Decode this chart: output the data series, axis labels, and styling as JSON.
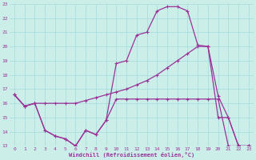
{
  "xlabel": "Windchill (Refroidissement éolien,°C)",
  "bg_color": "#cceee8",
  "grid_color": "#aadddd",
  "line_color": "#993399",
  "xlim": [
    -0.5,
    23.5
  ],
  "ylim": [
    13,
    23
  ],
  "yticks": [
    13,
    14,
    15,
    16,
    17,
    18,
    19,
    20,
    21,
    22,
    23
  ],
  "xticks": [
    0,
    1,
    2,
    3,
    4,
    5,
    6,
    7,
    8,
    9,
    10,
    11,
    12,
    13,
    14,
    15,
    16,
    17,
    18,
    19,
    20,
    21,
    22,
    23
  ],
  "line1_x": [
    0,
    1,
    2,
    3,
    4,
    5,
    6,
    7,
    8,
    9,
    10,
    11,
    12,
    13,
    14,
    15,
    16,
    17,
    18,
    19,
    20,
    21,
    22,
    23
  ],
  "line1_y": [
    16.6,
    15.8,
    16.0,
    14.1,
    13.7,
    13.5,
    13.0,
    14.1,
    13.8,
    14.8,
    16.3,
    16.3,
    16.3,
    16.3,
    16.3,
    16.3,
    16.3,
    16.3,
    16.3,
    16.3,
    16.3,
    13.0,
    13.0,
    13.0
  ],
  "line2_x": [
    0,
    1,
    2,
    3,
    4,
    5,
    6,
    7,
    8,
    9,
    10,
    11,
    12,
    13,
    14,
    15,
    16,
    17,
    18,
    19,
    20,
    21,
    22,
    23
  ],
  "line2_y": [
    16.6,
    15.8,
    16.0,
    14.1,
    13.7,
    13.5,
    13.0,
    14.1,
    13.8,
    14.8,
    18.8,
    19.0,
    20.8,
    21.0,
    22.5,
    22.8,
    22.8,
    22.5,
    20.1,
    20.0,
    15.0,
    15.0,
    13.0,
    13.0
  ],
  "line3_x": [
    0,
    1,
    2,
    3,
    4,
    5,
    6,
    7,
    8,
    9,
    10,
    11,
    12,
    13,
    14,
    15,
    16,
    17,
    18,
    19,
    20,
    21,
    22,
    23
  ],
  "line3_y": [
    16.6,
    15.8,
    16.0,
    16.0,
    16.0,
    16.0,
    16.0,
    16.2,
    16.4,
    16.6,
    16.8,
    17.0,
    17.3,
    17.6,
    18.0,
    18.5,
    19.0,
    19.5,
    20.0,
    20.0,
    16.5,
    15.0,
    13.0,
    13.0
  ]
}
